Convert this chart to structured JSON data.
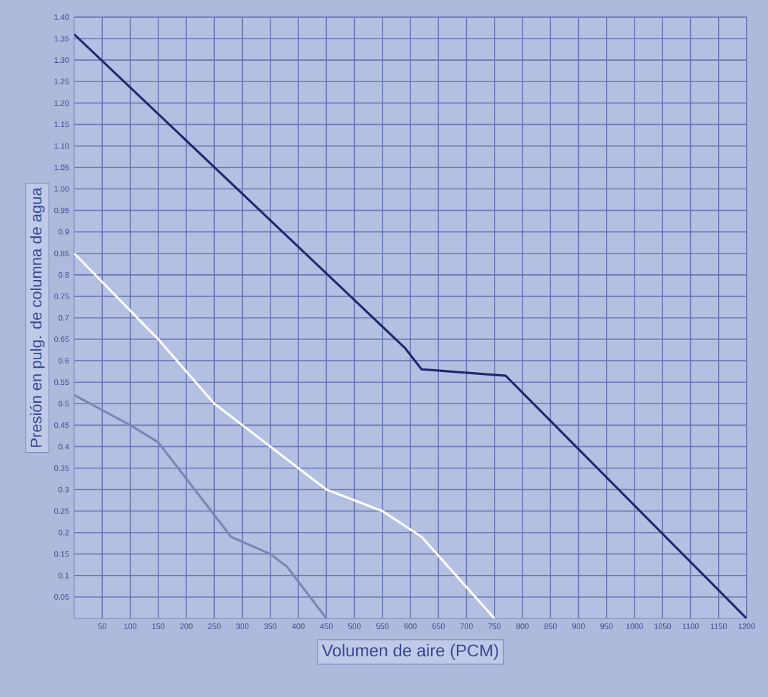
{
  "chart_data": {
    "type": "line",
    "xlabel": "Volumen de aire (PCM)",
    "ylabel": "Presión en pulg. de columna de agua",
    "xlim": [
      0,
      1200
    ],
    "ylim": [
      0,
      1.4
    ],
    "xticks": [
      50,
      100,
      150,
      200,
      250,
      300,
      350,
      400,
      450,
      500,
      550,
      600,
      650,
      700,
      750,
      800,
      850,
      900,
      950,
      1000,
      1050,
      1100,
      1150,
      1200
    ],
    "yticks": [
      0.05,
      0.1,
      0.15,
      0.2,
      0.25,
      0.3,
      0.35,
      0.4,
      0.45,
      0.5,
      0.55,
      0.6,
      0.65,
      0.7,
      0.75,
      0.8,
      0.85,
      0.9,
      0.95,
      {
        "value": 1.0,
        "label": "1.00"
      },
      1.05,
      {
        "value": 1.1,
        "label": "1.10"
      },
      1.15,
      {
        "value": 1.2,
        "label": "1.20"
      },
      1.25,
      {
        "value": 1.3,
        "label": "1.30"
      },
      1.35,
      {
        "value": 1.4,
        "label": "1.40"
      }
    ],
    "grid": true,
    "marker": "none",
    "line_style": "solid",
    "series": [
      {
        "color": "#1f2a6e",
        "x": [
          0,
          590,
          620,
          770,
          1200
        ],
        "values": [
          1.36,
          0.63,
          0.58,
          0.565,
          0.0
        ]
      },
      {
        "color": "#ffffff",
        "x": [
          0,
          150,
          250,
          300,
          390,
          450,
          550,
          620,
          750
        ],
        "values": [
          0.85,
          0.65,
          0.5,
          0.45,
          0.36,
          0.3,
          0.25,
          0.19,
          0.0
        ]
      },
      {
        "color": "#7c86b4",
        "x": [
          0,
          100,
          150,
          280,
          350,
          380,
          450
        ],
        "values": [
          0.52,
          0.45,
          0.41,
          0.19,
          0.15,
          0.12,
          0.0
        ]
      }
    ]
  }
}
